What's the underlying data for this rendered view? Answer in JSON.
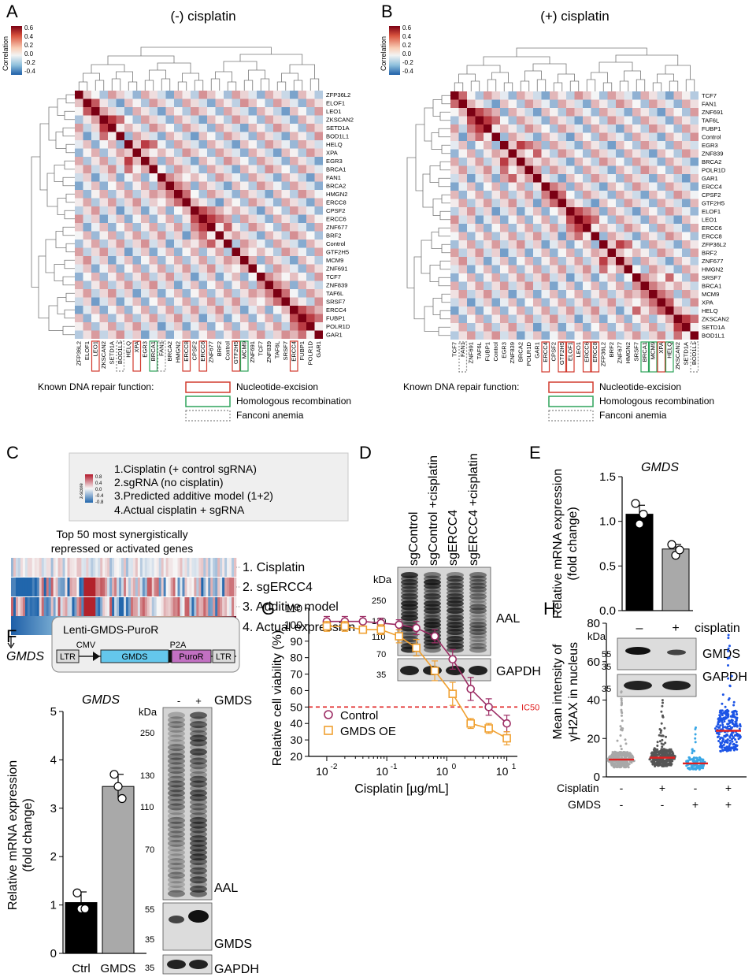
{
  "colors": {
    "ner": "#d23b2e",
    "hr": "#2ea35a",
    "fa": "#888888",
    "heat_pos": "#7b0013",
    "heat_neg": "#1e5fa8",
    "control_line": "#9c2c64",
    "gmds_line": "#f0a030",
    "ic50": "#e02020",
    "bar_black": "#000000",
    "bar_gray": "#a9a9a9",
    "h_gray": "#a8a8a8",
    "h_dark": "#555555",
    "h_light": "#39a7e6",
    "h_blue": "#1c54e6",
    "h_median": "#e02020"
  },
  "panelA": {
    "letter": "A",
    "title": "(-) cisplatin",
    "colorbar_label": "Correlation",
    "colorbar_ticks": [
      "0.6",
      "0.4",
      "0.2",
      "0.0",
      "-0.2",
      "-0.4"
    ],
    "row_labels": [
      "ZFP36L2",
      "ELOF1",
      "LEO1",
      "ZKSCAN2",
      "SETD1A",
      "BOD1L1",
      "HELQ",
      "XPA",
      "EGR3",
      "BRCA1",
      "FAN1",
      "BRCA2",
      "HMGN2",
      "ERCC8",
      "CPSF2",
      "ERCC6",
      "ZNF677",
      "BRF2",
      "Control",
      "GTF2H5",
      "MCM9",
      "ZNF691",
      "TCF7",
      "ZNF839",
      "TAF6L",
      "SRSF7",
      "ERCC4",
      "FUBP1",
      "POLR1D",
      "GAR1"
    ],
    "blocks": [
      [
        1,
        2
      ],
      [
        3,
        5
      ],
      [
        6,
        9
      ],
      [
        10,
        13
      ],
      [
        14,
        18
      ],
      [
        19,
        21
      ],
      [
        22,
        25
      ],
      [
        26,
        29
      ]
    ],
    "legend_title": "Known DNA repair function:",
    "legend_items": [
      "Nucleotide-excision",
      "Homologous recombination",
      "Fanconi anemia"
    ]
  },
  "panelB": {
    "letter": "B",
    "title": "(+) cisplatin",
    "colorbar_ticks": [
      "0.6",
      "0.4",
      "0.2",
      "0.0",
      "-0.2",
      "-0.4"
    ],
    "row_labels": [
      "TCF7",
      "FAN1",
      "ZNF691",
      "TAF6L",
      "FUBP1",
      "Control",
      "EGR3",
      "ZNF839",
      "BRCA2",
      "POLR1D",
      "GAR1",
      "ERCC4",
      "CPSF2",
      "GTF2H5",
      "ELOF1",
      "LEO1",
      "ERCC6",
      "ERCC8",
      "ZFP36L2",
      "BRF2",
      "ZNF677",
      "HMGN2",
      "SRSF7",
      "BRCA1",
      "MCM9",
      "XPA",
      "HELQ",
      "ZKSCAN2",
      "SETD1A",
      "BOD1L1"
    ],
    "blocks": [
      [
        0,
        1
      ],
      [
        2,
        5
      ],
      [
        6,
        10
      ],
      [
        11,
        13
      ],
      [
        14,
        17
      ],
      [
        18,
        21
      ],
      [
        22,
        26
      ],
      [
        27,
        29
      ]
    ],
    "legend_title": "Known DNA repair function:",
    "legend_items": [
      "Nucleotide-excision",
      "Homologous recombination",
      "Fanconi anemia"
    ]
  },
  "panelC": {
    "letter": "C",
    "legend_lines": [
      "1.Cisplatin (+ control sgRNA)",
      "2.sgRNA (no cisplatin)",
      "3.Predicted additive model (1+2)",
      "4.Actual cisplatin + sgRNA"
    ],
    "zscore_label": "z-score",
    "zscore_ticks": [
      "0.8",
      "0.4",
      "0.0",
      "-0.4",
      "-0.8"
    ],
    "subtitle1": "Top 50 most synergistically",
    "subtitle2": "repressed or activated genes",
    "row_labels": [
      "1. Cisplatin",
      "2. sgERCC4",
      "3. Additive model",
      "4. Actual expression"
    ],
    "gene": "GMDS"
  },
  "panelD": {
    "letter": "D",
    "lanes": [
      "sgControl",
      "sgControl +cisplatin",
      "sgERCC4",
      "sgERCC4 +cisplatin"
    ],
    "kda": "kDa",
    "markers": [
      "250",
      "130",
      "110",
      "70",
      "35"
    ],
    "bands": [
      "AAL",
      "GAPDH"
    ]
  },
  "panelE": {
    "letter": "E",
    "gene": "GMDS",
    "ylabel1": "Relative mRNA expression",
    "ylabel2": "(fold change)",
    "yticks": [
      "0.0",
      "0.5",
      "1.0",
      "1.5"
    ],
    "chart_data": {
      "type": "bar",
      "categories": [
        "–",
        "+"
      ],
      "values": [
        1.08,
        0.69
      ],
      "errors": [
        0.1,
        0.05
      ],
      "points": [
        [
          1.2,
          0.97,
          1.08
        ],
        [
          0.74,
          0.62,
          0.68
        ]
      ],
      "ylim": [
        0,
        1.5
      ],
      "xlabel": "cisplatin"
    },
    "xlabel": "cisplatin",
    "kda": "kDa",
    "markers": [
      "55",
      "35",
      "35"
    ],
    "bands": [
      "GMDS",
      "GAPDH"
    ]
  },
  "panelF": {
    "letter": "F",
    "construct_title": "Lenti-GMDS-PuroR",
    "construct_parts": [
      "LTR",
      "CMV",
      "GMDS",
      "P2A",
      "PuroR",
      "LTR"
    ],
    "gene": "GMDS",
    "ylabel1": "Relative mRNA expression",
    "ylabel2": "(fold change)",
    "yticks": [
      "0",
      "1",
      "2",
      "3",
      "4",
      "5"
    ],
    "chart_data": {
      "type": "bar",
      "categories": [
        "Ctrl",
        "GMDS"
      ],
      "values": [
        1.05,
        3.45
      ],
      "errors": [
        0.22,
        0.25
      ],
      "points": [
        [
          1.25,
          0.92,
          0.92
        ],
        [
          3.7,
          3.45,
          3.2
        ]
      ],
      "ylim": [
        0,
        5
      ]
    },
    "blot_lanes": [
      "-",
      "+"
    ],
    "blot_header": "GMDS",
    "kda": "kDa",
    "markers": [
      "250",
      "130",
      "110",
      "70",
      "55",
      "35",
      "35"
    ],
    "bands": [
      "AAL",
      "GMDS",
      "GAPDH"
    ]
  },
  "panelG": {
    "letter": "G",
    "ylabel": "Relative cell viability (%)",
    "xlabel": "Cisplatin [µg/mL]",
    "yticks": [
      "20",
      "30",
      "40",
      "50",
      "60",
      "70",
      "80",
      "90",
      "100",
      "110"
    ],
    "xticks": [
      "10-2",
      "10-1",
      "100",
      "101"
    ],
    "ic50_label": "IC50",
    "chart_data": {
      "type": "line",
      "x": [
        0.01,
        0.02,
        0.04,
        0.08,
        0.16,
        0.31,
        0.63,
        1.25,
        2.5,
        5,
        10
      ],
      "series": [
        {
          "name": "Control",
          "values": [
            102,
            102,
            102,
            101,
            100,
            98,
            93,
            79,
            61,
            50,
            40
          ],
          "errors": [
            3,
            3,
            3,
            3,
            3,
            4,
            4,
            6,
            7,
            5,
            5
          ]
        },
        {
          "name": "GMDS OE",
          "values": [
            99,
            99,
            97,
            97,
            93,
            86,
            72,
            58,
            40,
            37,
            31
          ],
          "errors": [
            3,
            3,
            2,
            3,
            4,
            5,
            6,
            7,
            3,
            3,
            4
          ]
        }
      ],
      "ylim": [
        20,
        110
      ],
      "xlim": [
        0.01,
        10
      ],
      "ic50": 50
    }
  },
  "panelH": {
    "letter": "H",
    "ylabel1": "Mean intensity of",
    "ylabel2": "γH2AX in nucleus",
    "yticks": [
      "0",
      "20",
      "40",
      "60",
      "80"
    ],
    "row1_label": "Cisplatin",
    "row2_label": "GMDS",
    "row1": [
      "-",
      "+",
      "-",
      "+"
    ],
    "row2": [
      "-",
      "-",
      "+",
      "+"
    ],
    "chart_data": {
      "type": "scatter",
      "categories": [
        "-/-",
        "+/-",
        "-/+",
        "+/+"
      ],
      "medians": [
        9,
        10,
        7,
        24
      ],
      "max_values": [
        46,
        41,
        27,
        78
      ],
      "ylim": [
        0,
        80
      ]
    }
  }
}
